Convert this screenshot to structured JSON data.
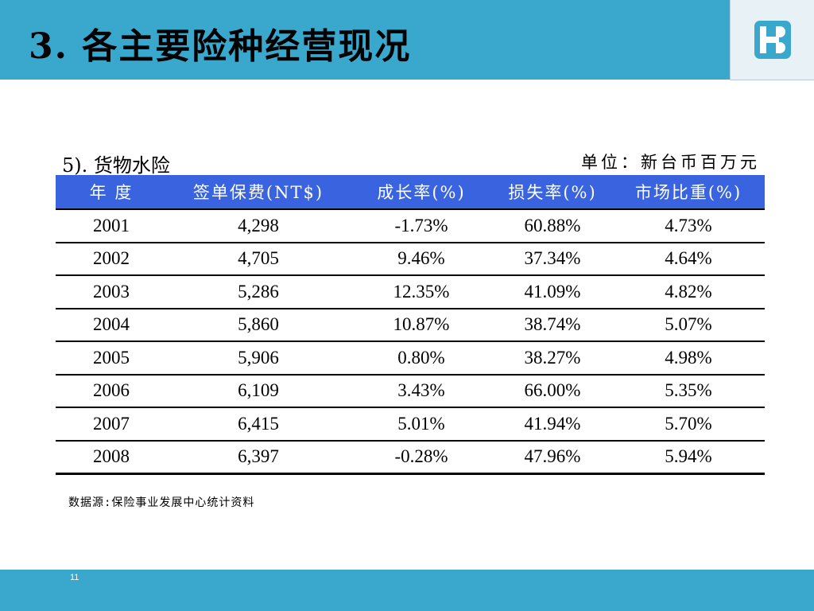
{
  "header": {
    "title": "3. 各主要险种经营现况"
  },
  "logo": {
    "icon": "fubon-logo-icon",
    "color": "#3aa7cd"
  },
  "caption": {
    "section": "5). 货物水险",
    "unit": "单位：新台币百万元"
  },
  "table": {
    "columns": [
      "年 度",
      "签单保费(NT$)",
      "成长率(%)",
      "损失率(%)",
      "市场比重(%)"
    ],
    "rows": [
      [
        "2001",
        "4,298",
        "-1.73%",
        "60.88%",
        "4.73%"
      ],
      [
        "2002",
        "4,705",
        "9.46%",
        "37.34%",
        "4.64%"
      ],
      [
        "2003",
        "5,286",
        "12.35%",
        "41.09%",
        "4.82%"
      ],
      [
        "2004",
        "5,860",
        "10.87%",
        "38.74%",
        "5.07%"
      ],
      [
        "2005",
        "5,906",
        "0.80%",
        "38.27%",
        "4.98%"
      ],
      [
        "2006",
        "6,109",
        "3.43%",
        "66.00%",
        "5.35%"
      ],
      [
        "2007",
        "6,415",
        "5.01%",
        "41.94%",
        "5.70%"
      ],
      [
        "2008",
        "6,397",
        "-0.28%",
        "47.96%",
        "5.94%"
      ]
    ]
  },
  "source_note": "数据源:保险事业发展中心统计资料",
  "footer": {
    "page_number": "11"
  },
  "colors": {
    "band": "#3aa7cd",
    "table_header": "#3a63e0",
    "logo_bg": "#e8f1f6"
  }
}
